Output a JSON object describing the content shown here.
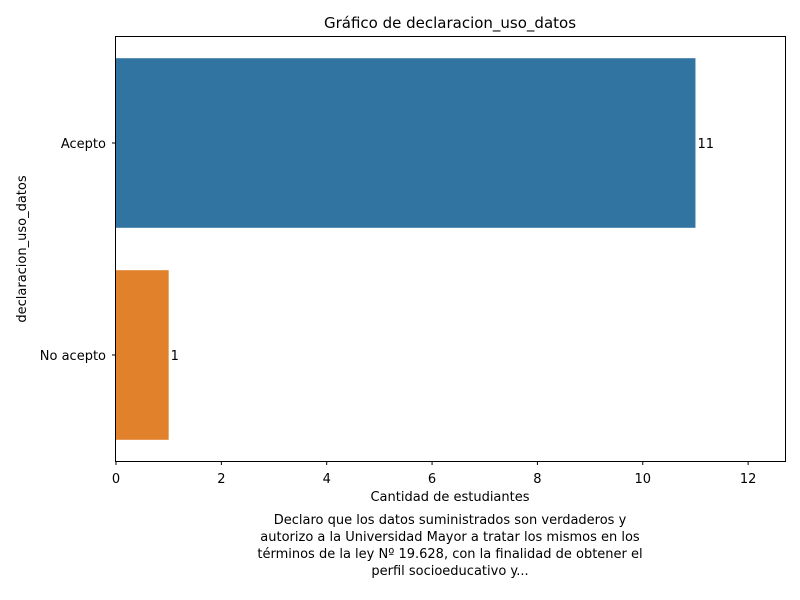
{
  "chart_data": {
    "type": "bar",
    "orientation": "horizontal",
    "title": "Gráfico de declaracion_uso_datos",
    "xlabel": "Cantidad de estudiantes",
    "ylabel": "declaracion_uso_datos",
    "categories": [
      "Acepto",
      "No acepto"
    ],
    "values": [
      11,
      1
    ],
    "value_labels": [
      "11",
      "1"
    ],
    "colors": [
      "#3274a1",
      "#e1812c"
    ],
    "xlim": [
      0,
      12.7
    ],
    "xticks": [
      0,
      2,
      4,
      6,
      8,
      10,
      12
    ],
    "xtick_labels": [
      "0",
      "2",
      "4",
      "6",
      "8",
      "10",
      "12"
    ],
    "grid": false,
    "caption": "Declaro que los datos suministrados son verdaderos y autorizo a la Universidad Mayor a tratar los mismos en los términos de la ley Nº 19.628, con la finalidad de obtener el perfil socioeducativo y..."
  },
  "caption_lines": [
    "Declaro que los datos suministrados son verdaderos y",
    "autorizo a la Universidad Mayor a tratar los mismos en los",
    "términos de la ley Nº 19.628, con la finalidad de obtener el",
    "perfil socioeducativo y..."
  ]
}
